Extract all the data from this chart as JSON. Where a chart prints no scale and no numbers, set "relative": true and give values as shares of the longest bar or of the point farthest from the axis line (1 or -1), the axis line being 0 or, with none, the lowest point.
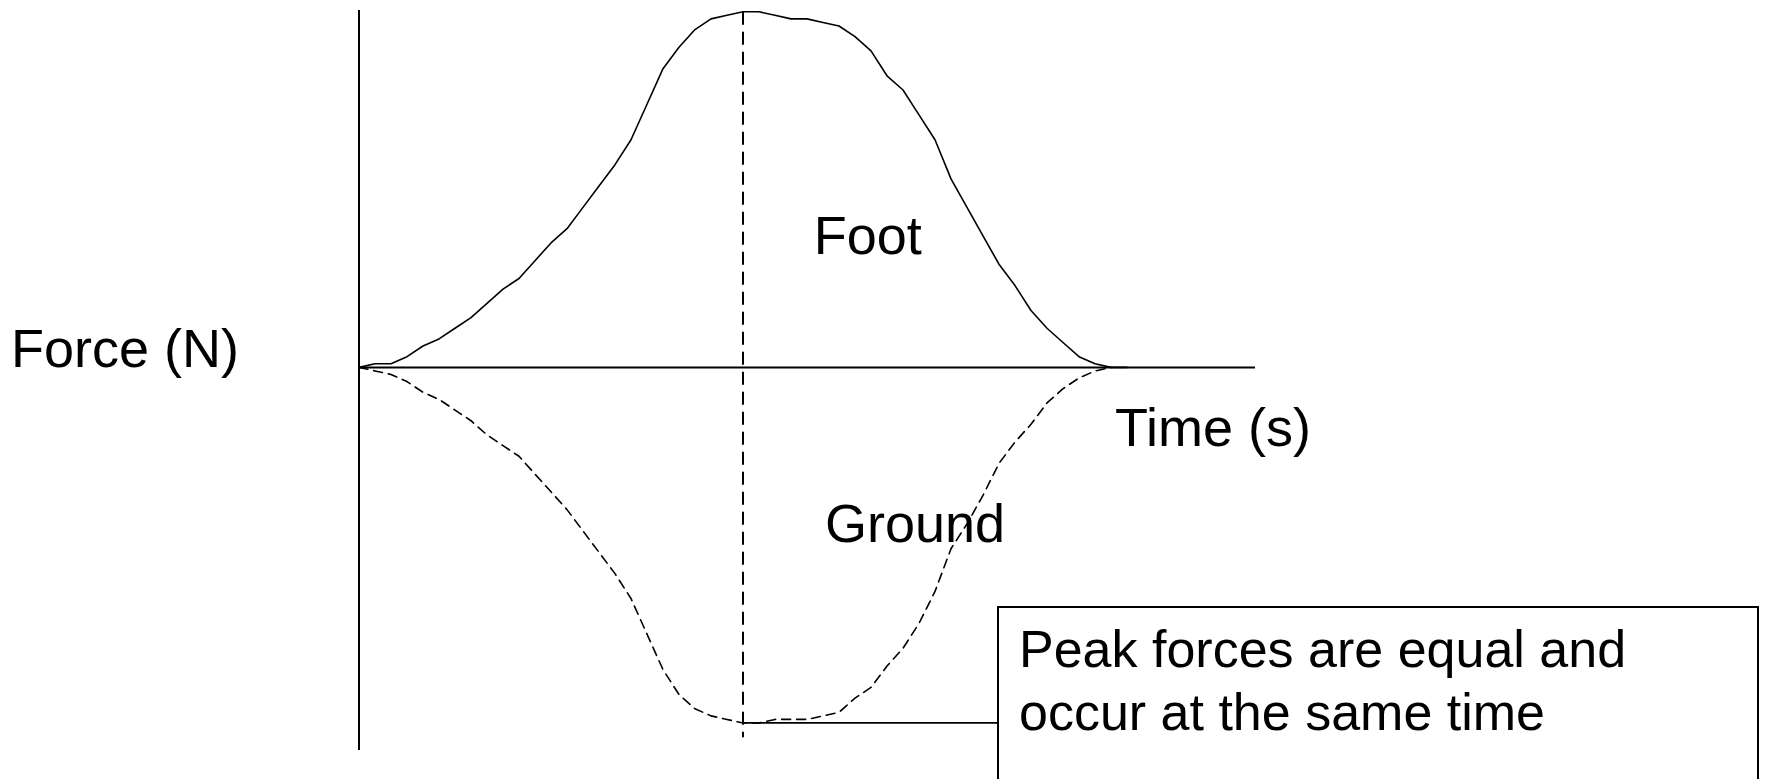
{
  "chart_data": {
    "type": "line",
    "relative": true,
    "xlabel": "Time (s)",
    "ylabel": "Force (N)",
    "tick_labels": false,
    "categories": [
      null,
      null,
      null,
      null,
      null,
      null,
      null,
      null,
      null,
      null,
      null,
      null,
      null,
      null,
      null,
      null,
      null,
      null,
      null,
      null,
      null,
      null,
      null,
      null,
      null,
      null,
      null,
      null,
      null,
      null,
      null,
      null,
      null,
      null,
      null,
      null,
      null,
      null,
      null,
      null,
      null,
      null,
      null,
      null,
      null,
      null,
      null,
      null,
      null,
      null,
      null,
      null,
      null,
      null,
      null,
      null,
      null
    ],
    "series": [
      {
        "name": "Foot",
        "color": "#000000",
        "line_style": "solid",
        "values": [
          0,
          0.01,
          0.01,
          0.03,
          0.06,
          0.08,
          0.11,
          0.14,
          0.18,
          0.22,
          0.25,
          0.3,
          0.35,
          0.39,
          0.45,
          0.51,
          0.57,
          0.64,
          0.74,
          0.84,
          0.9,
          0.95,
          0.98,
          0.99,
          1,
          1,
          0.99,
          0.98,
          0.98,
          0.97,
          0.96,
          0.93,
          0.89,
          0.82,
          0.78,
          0.71,
          0.64,
          0.53,
          0.45,
          0.37,
          0.29,
          0.23,
          0.16,
          0.11,
          0.07,
          0.03,
          0.01,
          0,
          0,
          null,
          null,
          null,
          null,
          null,
          null,
          null,
          null
        ]
      },
      {
        "name": "Ground",
        "color": "#000000",
        "line_style": "dashed",
        "values": [
          0,
          -0.01,
          -0.02,
          -0.04,
          -0.07,
          -0.09,
          -0.12,
          -0.15,
          -0.19,
          -0.22,
          -0.25,
          -0.3,
          -0.35,
          -0.4,
          -0.46,
          -0.52,
          -0.58,
          -0.65,
          -0.75,
          -0.85,
          -0.92,
          -0.96,
          -0.98,
          -0.99,
          -1,
          -1,
          -0.99,
          -0.99,
          -0.99,
          -0.98,
          -0.97,
          -0.93,
          -0.9,
          -0.84,
          -0.79,
          -0.72,
          -0.63,
          -0.51,
          -0.44,
          -0.36,
          -0.27,
          -0.21,
          -0.16,
          -0.1,
          -0.06,
          -0.03,
          -0.01,
          0,
          null,
          null,
          null,
          null,
          null,
          null,
          null,
          null,
          null
        ]
      }
    ],
    "annotations": [
      "Peak forces are equal and occur at the same time"
    ]
  }
}
